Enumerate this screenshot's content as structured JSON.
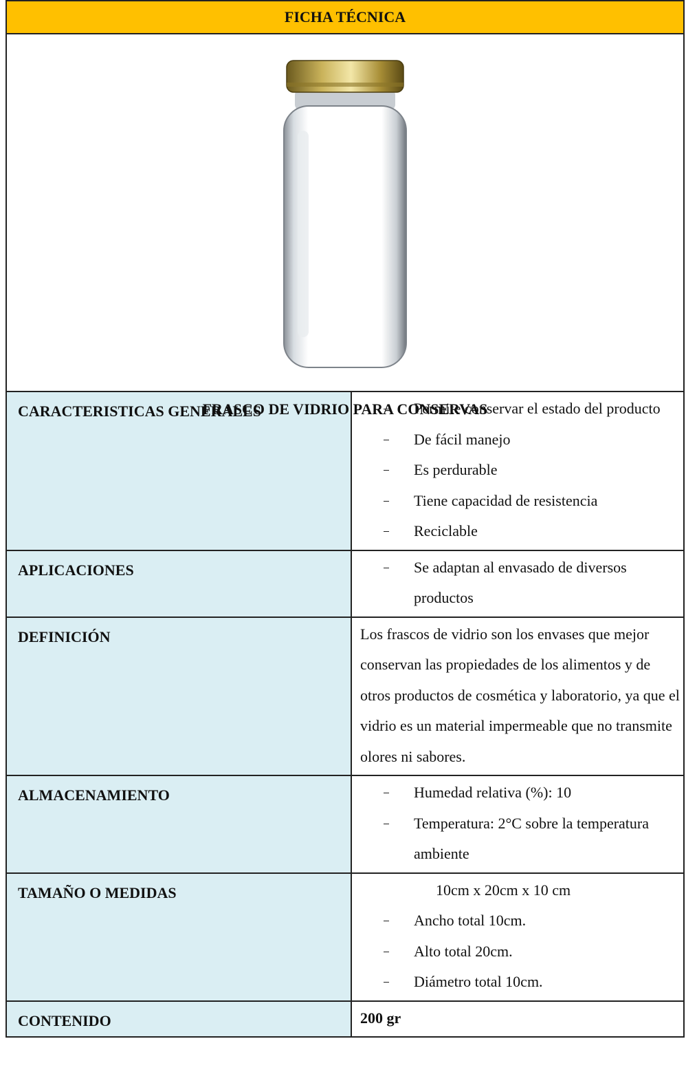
{
  "header": {
    "title": "FICHA TÉCNICA"
  },
  "product": {
    "name": "FRASCO DE VIDRIO PARA CONSERVAS"
  },
  "rows": [
    {
      "label": "CARACTERISTICAS GENERALES",
      "items": [
        "Permite conservar el estado del producto",
        "De fácil manejo",
        "Es perdurable",
        "Tiene capacidad de resistencia",
        "Reciclable"
      ]
    },
    {
      "label": "APLICACIONES",
      "items": [
        "Se adaptan al envasado de diversos productos"
      ]
    },
    {
      "label": "DEFINICIÓN",
      "text": "Los frascos de vidrio son los envases que mejor conservan las propiedades de los alimentos y de otros productos de cosmética y laboratorio, ya que el vidrio es un material impermeable que no transmite olores ni sabores."
    },
    {
      "label": "ALMACENAMIENTO",
      "items": [
        "Humedad relativa (%): 10",
        "Temperatura: 2°C sobre la temperatura ambiente"
      ]
    },
    {
      "label": "TAMAÑO O MEDIDAS",
      "text": "10cm x 20cm x 10 cm",
      "items": [
        "Ancho total 10cm.",
        "Alto total 20cm.",
        "Diámetro total 10cm."
      ]
    },
    {
      "label": "CONTENIDO",
      "text": "200 gr",
      "bold": true
    }
  ]
}
